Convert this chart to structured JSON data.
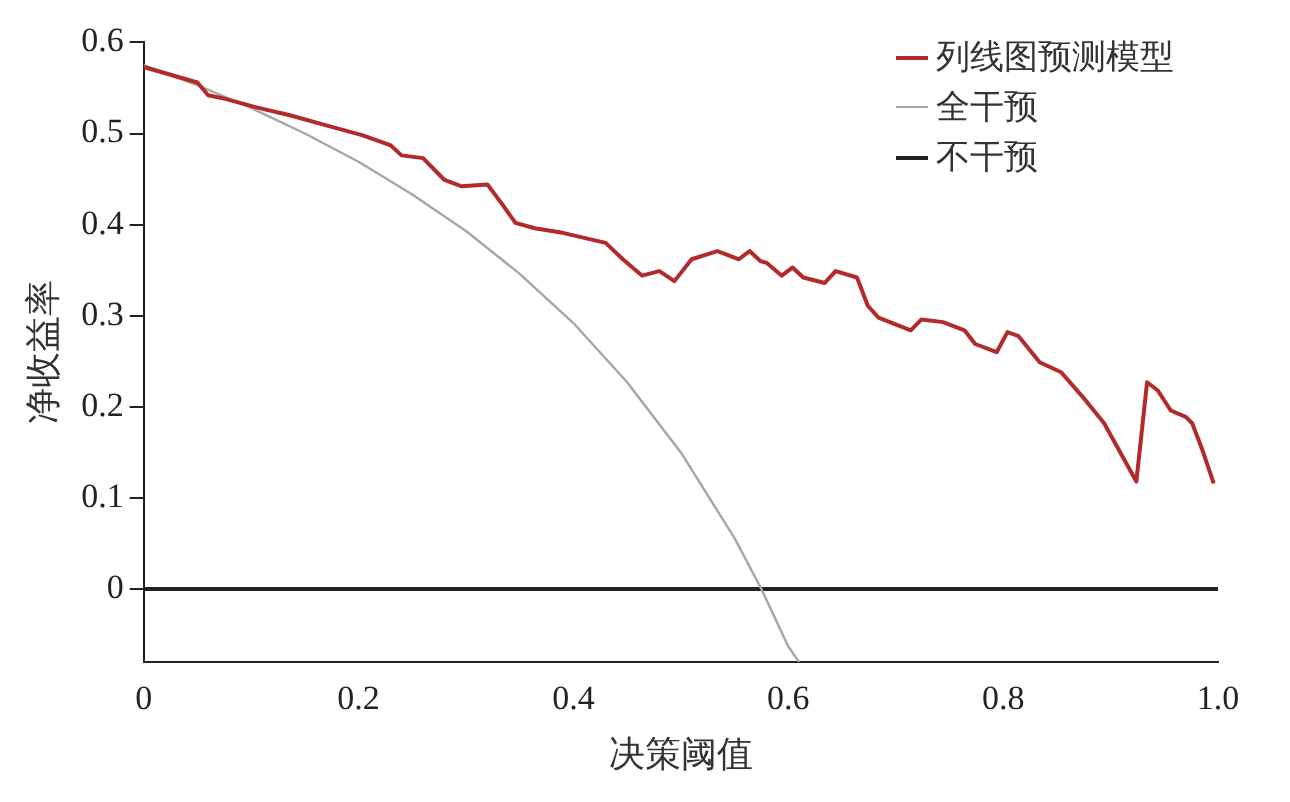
{
  "chart_data": {
    "type": "line",
    "xlabel": "决策阈值",
    "ylabel": "净收益率",
    "xlim": [
      0,
      1
    ],
    "xticks": [
      0,
      0.2,
      0.4,
      0.6,
      0.8,
      {
        "value": 1,
        "label": "1.0"
      }
    ],
    "ylim": [
      -0.08,
      0.6
    ],
    "yticks": [
      0,
      0.1,
      0.2,
      0.3,
      0.4,
      0.5,
      0.6
    ],
    "grid": false,
    "legend": "top right",
    "marker": "none",
    "series": [
      {
        "name": "列线图预测模型",
        "color": "#b22a2a",
        "x": [
          0,
          0.05,
          0.06,
          0.076,
          0.104,
          0.136,
          0.17,
          0.204,
          0.23,
          0.24,
          0.26,
          0.28,
          0.296,
          0.32,
          0.334,
          0.346,
          0.364,
          0.39,
          0.43,
          0.446,
          0.464,
          0.48,
          0.494,
          0.51,
          0.534,
          0.554,
          0.564,
          0.574,
          0.58,
          0.594,
          0.604,
          0.614,
          0.634,
          0.644,
          0.664,
          0.674,
          0.684,
          0.714,
          0.724,
          0.744,
          0.764,
          0.774,
          0.794,
          0.804,
          0.814,
          0.834,
          0.854,
          0.874,
          0.894,
          0.924,
          0.934,
          0.944,
          0.956,
          0.97,
          0.976,
          0.986,
          0.996
        ],
        "values": [
          0.573,
          0.556,
          0.542,
          0.538,
          0.529,
          0.52,
          0.509,
          0.498,
          0.487,
          0.476,
          0.473,
          0.449,
          0.442,
          0.444,
          0.422,
          0.402,
          0.396,
          0.391,
          0.38,
          0.362,
          0.344,
          0.349,
          0.338,
          0.362,
          0.371,
          0.362,
          0.371,
          0.36,
          0.358,
          0.344,
          0.353,
          0.342,
          0.336,
          0.349,
          0.342,
          0.311,
          0.298,
          0.284,
          0.296,
          0.293,
          0.284,
          0.269,
          0.26,
          0.282,
          0.278,
          0.249,
          0.238,
          0.211,
          0.182,
          0.118,
          0.227,
          0.218,
          0.196,
          0.189,
          0.182,
          0.151,
          0.116
        ]
      },
      {
        "name": "全干预",
        "color": "#a6a6a6",
        "x": [
          0,
          0.05,
          0.1,
          0.15,
          0.2,
          0.25,
          0.3,
          0.35,
          0.4,
          0.45,
          0.5,
          0.55,
          0.575,
          0.6,
          0.61
        ],
        "values": [
          0.575,
          0.553,
          0.528,
          0.5,
          0.469,
          0.433,
          0.393,
          0.346,
          0.292,
          0.227,
          0.15,
          0.056,
          0,
          -0.063,
          -0.08
        ]
      },
      {
        "name": "不干预",
        "color": "#222222",
        "x": [
          0,
          1
        ],
        "values": [
          0,
          0
        ]
      }
    ]
  }
}
